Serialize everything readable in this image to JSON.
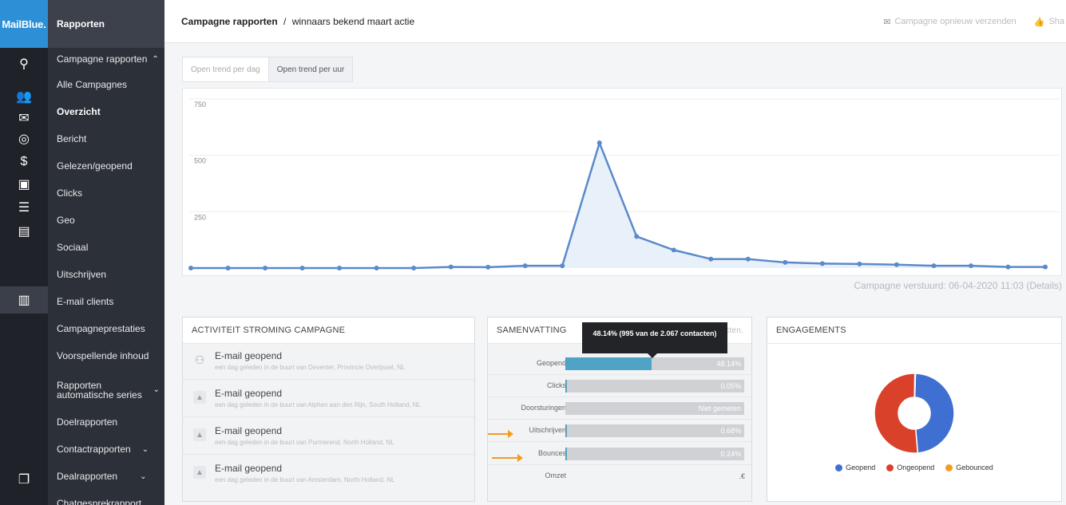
{
  "brand": {
    "logo": "MailBlue."
  },
  "rail": [
    {
      "name": "search-icon",
      "glyph": "⚲"
    },
    {
      "name": "contacts-icon",
      "glyph": "👥"
    },
    {
      "name": "mail-icon",
      "glyph": "✉"
    },
    {
      "name": "target-icon",
      "glyph": "◎"
    },
    {
      "name": "dollar-icon",
      "glyph": "$"
    },
    {
      "name": "chat-icon",
      "glyph": "▣"
    },
    {
      "name": "list-icon",
      "glyph": "☰"
    },
    {
      "name": "document-icon",
      "glyph": "▤"
    },
    {
      "name": "reports-icon",
      "glyph": "▥"
    },
    {
      "name": "windows-icon",
      "glyph": "❐"
    }
  ],
  "nav": {
    "header": "Rapporten",
    "items": [
      {
        "label": "Campagne rapporten",
        "arrow": "⌃"
      },
      {
        "label": "Alle Campagnes"
      },
      {
        "label": "Overzicht"
      },
      {
        "label": "Bericht"
      },
      {
        "label": "Gelezen/geopend"
      },
      {
        "label": "Clicks"
      },
      {
        "label": "Geo"
      },
      {
        "label": "Sociaal"
      },
      {
        "label": "Uitschrijven"
      },
      {
        "label": "E-mail clients"
      },
      {
        "label": "Campagneprestaties"
      },
      {
        "label": "Voorspellende inhoud"
      },
      {
        "label": "Rapporten automatische series",
        "arrow": "⌄"
      },
      {
        "label": "Doelrapporten"
      },
      {
        "label": "Contactrapporten",
        "arrow": "⌄"
      },
      {
        "label": "Dealrapporten",
        "arrow": "⌄"
      },
      {
        "label": "Chatgesprekrapport"
      }
    ]
  },
  "header": {
    "crumb_root": "Campagne rapporten",
    "crumb_sep": "/",
    "crumb_current": "winnaars bekend maart actie",
    "resend_label": "Campagne opnieuw verzenden",
    "share_label": "Sha"
  },
  "tabs": [
    {
      "label": "Open trend per dag",
      "active": false
    },
    {
      "label": "Open trend per uur",
      "active": true
    }
  ],
  "chart_data": {
    "type": "area",
    "title": "",
    "xlabel": "",
    "ylabel": "",
    "ylim": [
      0,
      750
    ],
    "yticks": [
      250,
      500,
      750
    ],
    "grid": true,
    "series": [
      {
        "values": [
          0,
          0,
          0,
          0,
          0,
          0,
          0,
          5,
          4,
          10,
          10,
          555,
          140,
          80,
          40,
          40,
          25,
          20,
          18,
          15,
          10,
          10,
          5,
          5
        ]
      }
    ],
    "color": "#5b8ac9"
  },
  "sent_text": "Campagne verstuurd: 06-04-2020 11:03 (Details)",
  "activity": {
    "title": "ACTIVITEIT STROMING CAMPAGNE",
    "items": [
      {
        "title": "E-mail geopend",
        "desc": "een dag geleden  in de buurt van Deventer, Provincie Overijssel, NL"
      },
      {
        "title": "E-mail geopend",
        "desc": "een dag geleden  in de buurt van Alphen aan den Rijn, South Holland, NL"
      },
      {
        "title": "E-mail geopend",
        "desc": "een dag geleden  in de buurt van Purmerend, North Holland, NL"
      },
      {
        "title": "E-mail geopend",
        "desc": "een dag geleden  in de buurt van Amsterdam, North Holland, NL"
      }
    ]
  },
  "summary": {
    "title": "SAMENVATTING",
    "header_fade": "contacten.",
    "tooltip": "48.14% (995 van de 2.067 contacten)",
    "rows": [
      {
        "label": "Geopend",
        "value": "48.14%",
        "fill": 0.4814,
        "highlight": true
      },
      {
        "label": "Clicks",
        "value": "0.05%",
        "fill": 0.0005
      },
      {
        "label": "Doorsturingen",
        "value": "Niet gemeten",
        "fill": 0
      },
      {
        "label": "Uitschrijven",
        "value": "0.68%",
        "fill": 0.0068
      },
      {
        "label": "Bounces",
        "value": "0.24%",
        "fill": 0.0024
      },
      {
        "label": "Omzet",
        "value": ".€",
        "fill": null
      }
    ]
  },
  "engagements": {
    "title": "ENGAGEMENTS",
    "donut": [
      {
        "name": "Geopend",
        "fraction": 0.4814,
        "color": "#3f6fd1"
      },
      {
        "name": "Ongeopend",
        "fraction": 0.5162,
        "color": "#d9412b"
      },
      {
        "name": "Gebounced",
        "fraction": 0.0024,
        "color": "#f39c1f"
      }
    ],
    "legend": [
      "Geopend",
      "Ongeopend",
      "Gebounced"
    ]
  }
}
